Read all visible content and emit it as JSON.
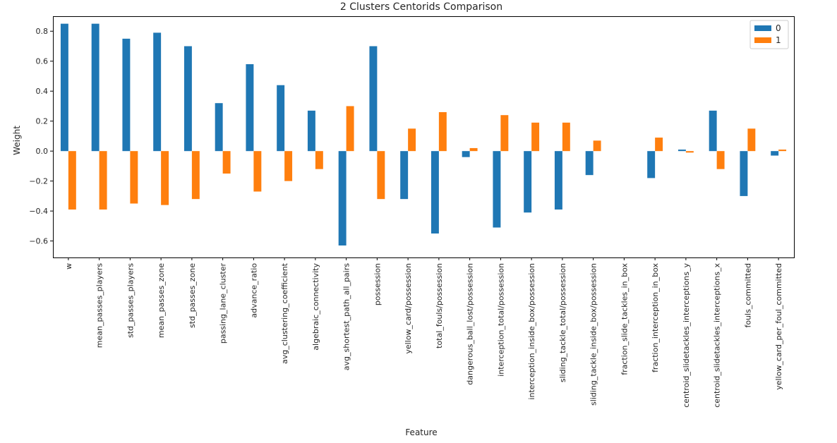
{
  "chart_data": {
    "type": "bar",
    "title": "2 Clusters Centorids Comparison",
    "xlabel": "Feature",
    "ylabel": "Weight",
    "ylim": [
      -0.71,
      0.9
    ],
    "yticks": [
      -0.6,
      -0.4,
      -0.2,
      0.0,
      0.2,
      0.4,
      0.6,
      0.8
    ],
    "ytick_labels": [
      "−0.6",
      "−0.4",
      "−0.2",
      "0.0",
      "0.2",
      "0.4",
      "0.6",
      "0.8"
    ],
    "grid": false,
    "legend_position": "top-right",
    "categories": [
      "w",
      "mean_passes_players",
      "std_passes_players",
      "mean_passes_zone",
      "std_passes_zone",
      "passing_lane_cluster",
      "advance_ratio",
      "avg_clustering_coefficient",
      "algebraic_connectivity",
      "avg_shortest_path_all_pairs",
      "possession",
      "yellow_card/possession",
      "total_fouls/possession",
      "dangerous_ball_lost/possession",
      "interception_total/possession",
      "interception_inside_box/possession",
      "sliding_tackle_total/possession",
      "sliding_tackle_inside_box/possession",
      "fraction_slide_tackles_in_box",
      "fraction_interception_in_box",
      "centroid_slidetackles_interceptions_y",
      "centroid_slidetackles_interceptions_x",
      "fouls_committed",
      "yellow_card_per_foul_committed"
    ],
    "series": [
      {
        "name": "0",
        "color": "#1f77b4",
        "values": [
          0.85,
          0.85,
          0.75,
          0.79,
          0.7,
          0.32,
          0.58,
          0.44,
          0.27,
          -0.63,
          0.7,
          -0.32,
          -0.55,
          -0.04,
          -0.51,
          -0.41,
          -0.39,
          -0.16,
          0.0,
          -0.18,
          0.01,
          0.27,
          -0.3,
          -0.03
        ]
      },
      {
        "name": "1",
        "color": "#ff7f0e",
        "values": [
          -0.39,
          -0.39,
          -0.35,
          -0.36,
          -0.32,
          -0.15,
          -0.27,
          -0.2,
          -0.12,
          0.3,
          -0.32,
          0.15,
          0.26,
          0.02,
          0.24,
          0.19,
          0.19,
          0.07,
          0.0,
          0.09,
          -0.01,
          -0.12,
          0.15,
          0.01
        ]
      }
    ]
  }
}
